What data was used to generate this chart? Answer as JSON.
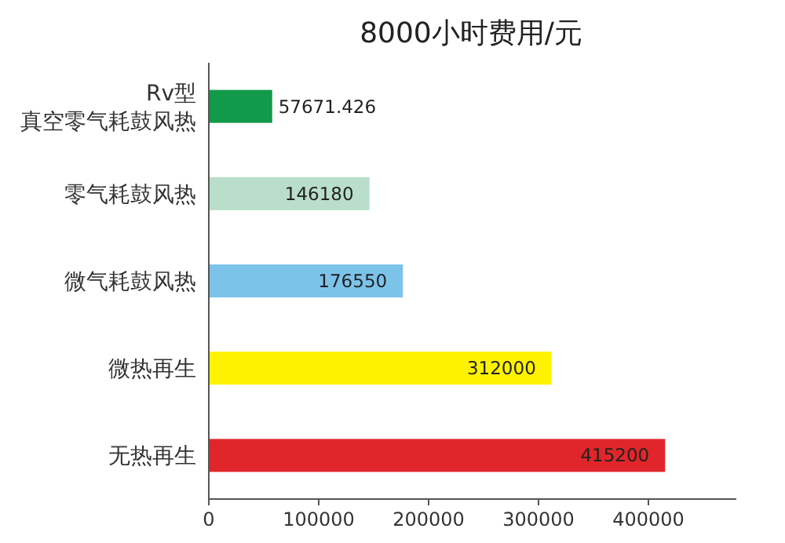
{
  "chart_data": {
    "type": "bar",
    "orientation": "horizontal",
    "title": "8000小时费用/元",
    "categories": [
      "Rv型真空零气耗鼓风热",
      "零气耗鼓风热",
      "微气耗鼓风热",
      "微热再生",
      "无热再生"
    ],
    "values": [
      57671.426,
      146180,
      176550,
      312000,
      415200
    ],
    "colors": [
      "#13994a",
      "#b9dec9",
      "#7cc3ea",
      "#fff200",
      "#e0262a"
    ],
    "xlim": [
      0,
      480000
    ],
    "xticks": [
      0,
      100000,
      200000,
      300000,
      400000
    ],
    "data_labels": true,
    "grid": false
  }
}
